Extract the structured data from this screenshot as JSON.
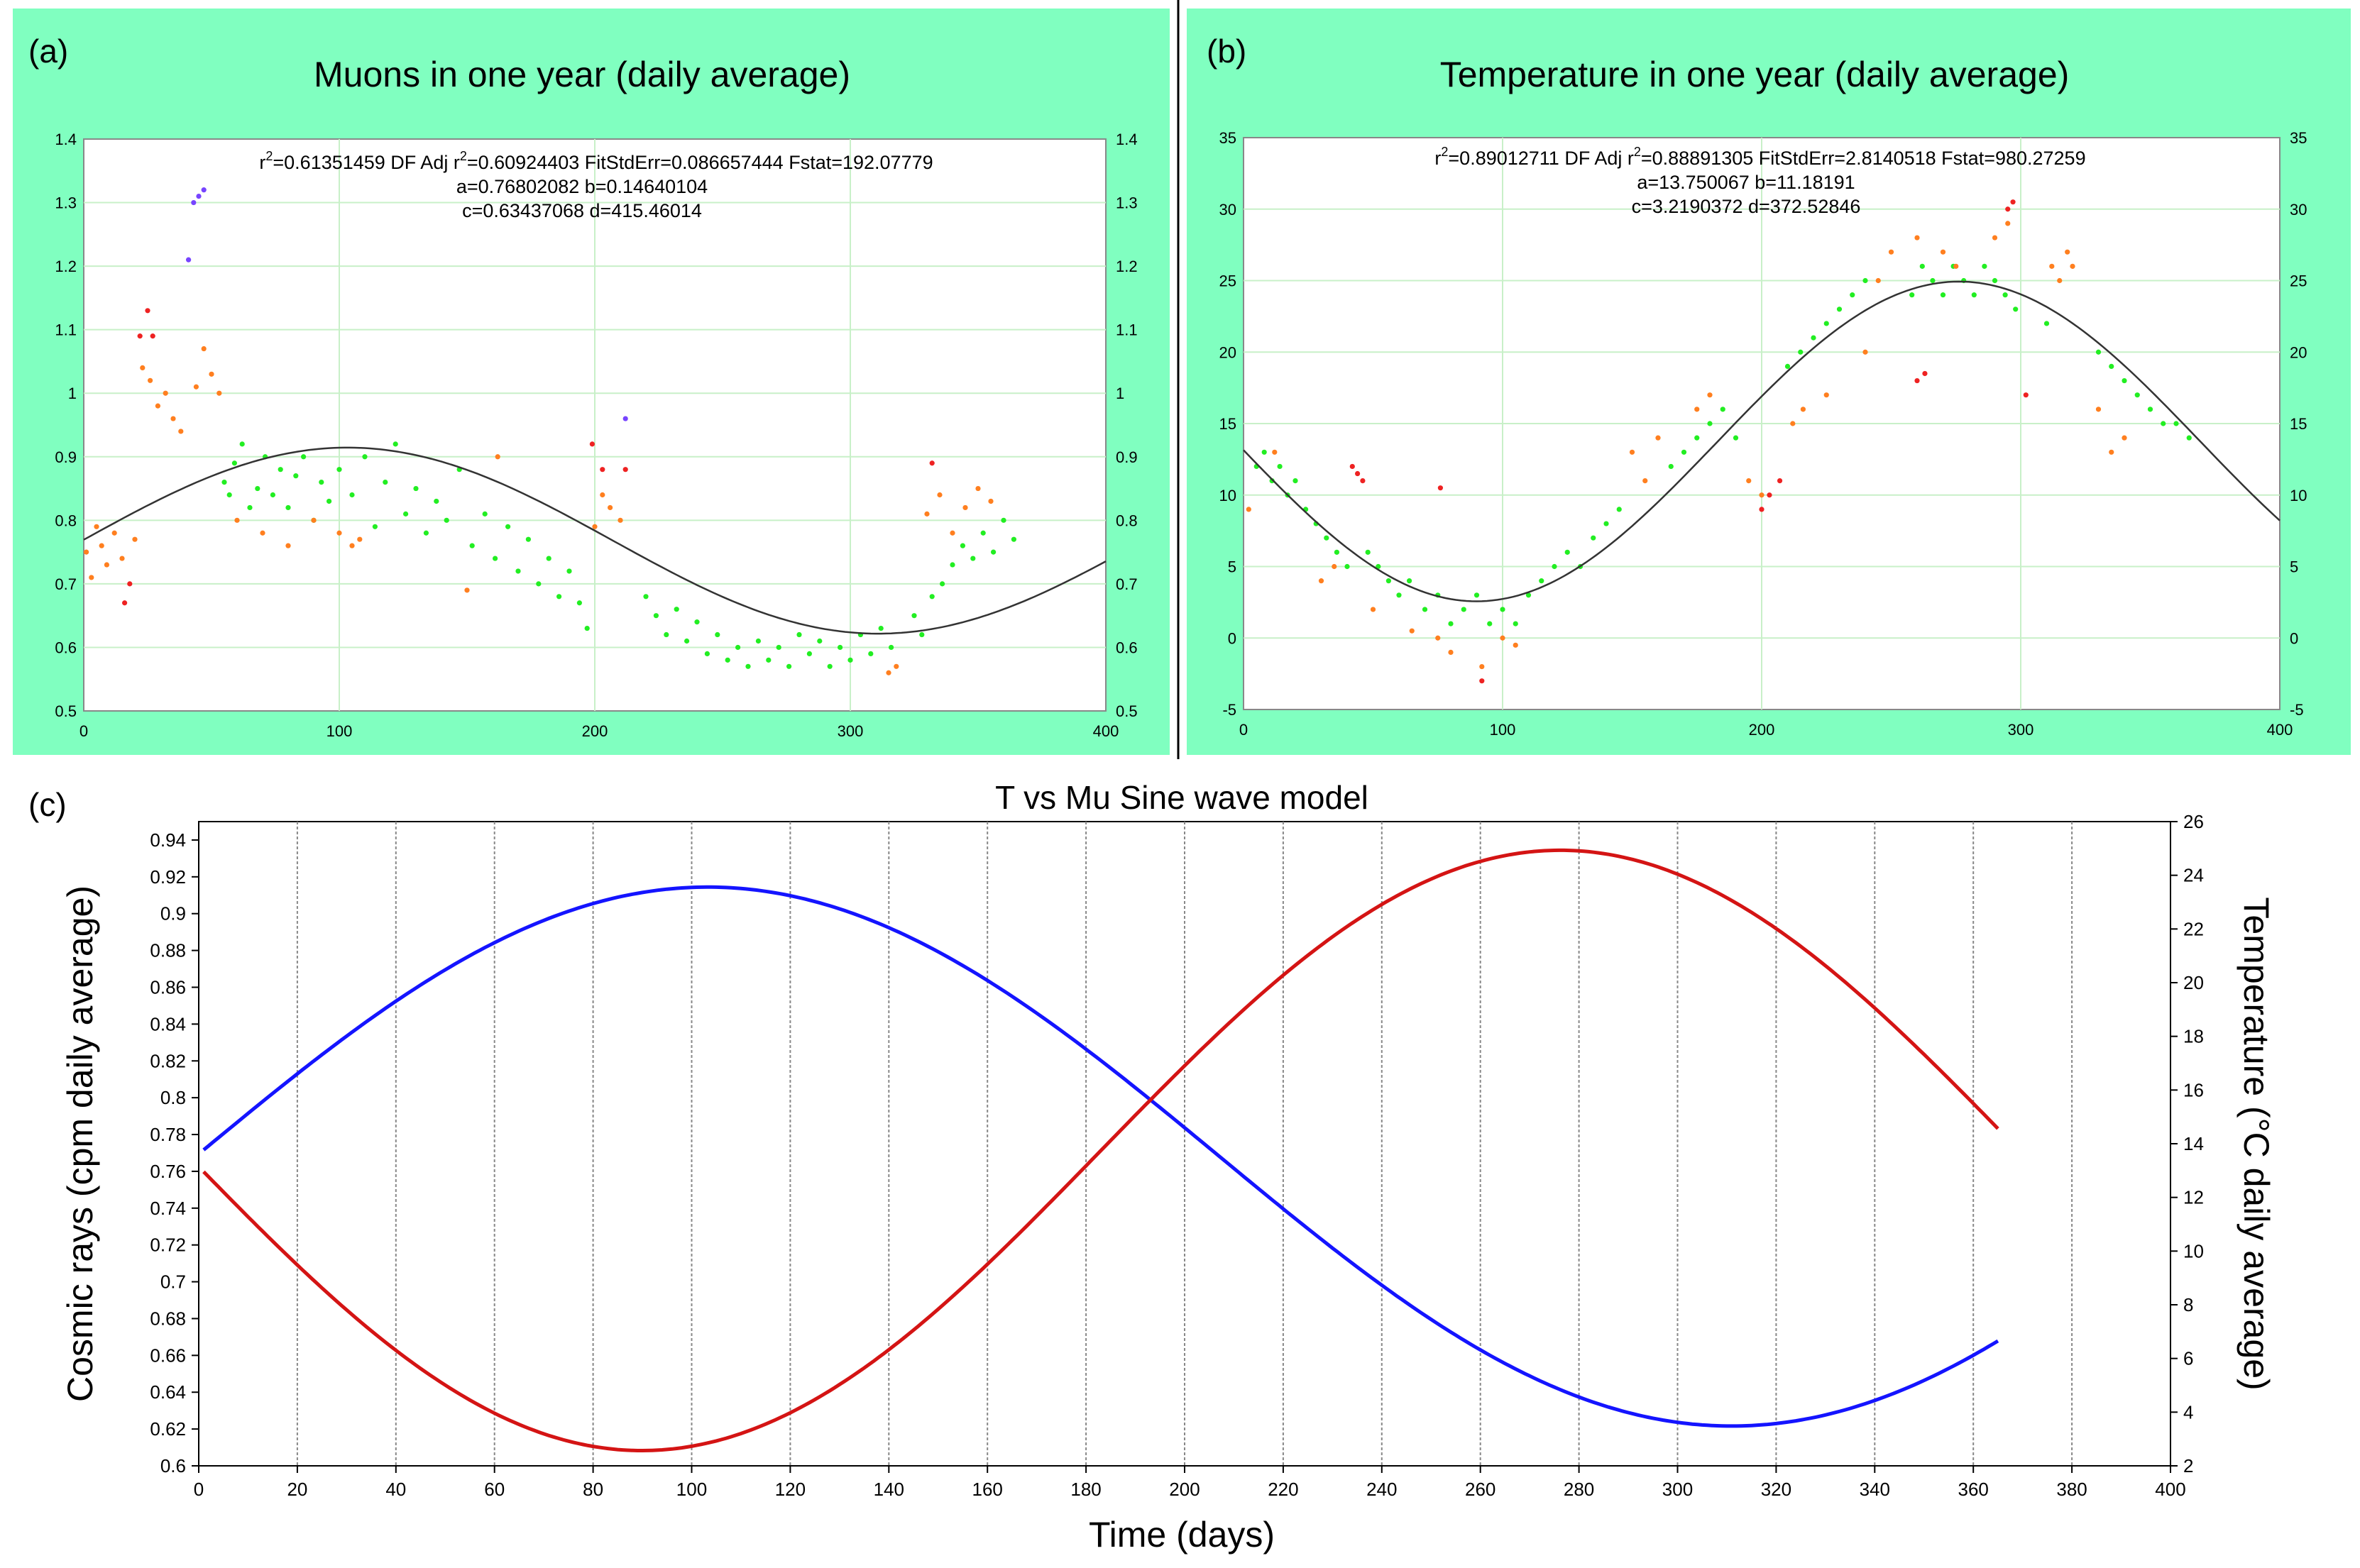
{
  "colors": {
    "panel_bg": "#80ffc0",
    "grid": "#c8f0c8",
    "green_pts": "#22ee22",
    "orange_pts": "#ff7f1f",
    "red_pts": "#ee2222",
    "purple_pts": "#7744ff",
    "fit_line": "#333333",
    "blue_line": "#1414ff",
    "red_line": "#d41414"
  },
  "chart_data": [
    {
      "type": "scatter",
      "panel_label": "(a)",
      "title": "Muons in one year (daily average)",
      "stats_line1_prefix": "r",
      "stats_line1_sup": "2",
      "stats_line1_mid": "=0.61351459  DF Adj r",
      "stats_line1_sup2": "2",
      "stats_line1_rest": "=0.60924403  FitStdErr=0.086657444  Fstat=192.07779",
      "stats_line2": "a=0.76802082 b=0.14640104",
      "stats_line3": "c=0.63437068 d=415.46014",
      "xlim": [
        0,
        400
      ],
      "ylim": [
        0.5,
        1.4
      ],
      "xticks": [
        "0",
        "100",
        "200",
        "300",
        "400"
      ],
      "yticks": [
        "0.5",
        "0.6",
        "0.7",
        "0.8",
        "0.9",
        "1",
        "1.1",
        "1.2",
        "1.3",
        "1.4"
      ],
      "fit": {
        "model": "a + b*sin(2*pi*(x + c)/d)",
        "a": 0.76802082,
        "b": 0.14640104,
        "c": 0.63437068,
        "d": 415.46014
      },
      "series": [
        {
          "name": "green",
          "x": [
            55,
            57,
            59,
            62,
            65,
            68,
            71,
            74,
            77,
            80,
            83,
            86,
            90,
            93,
            96,
            100,
            105,
            110,
            114,
            118,
            122,
            126,
            130,
            134,
            138,
            142,
            147,
            152,
            157,
            161,
            166,
            170,
            174,
            178,
            182,
            186,
            190,
            194,
            197,
            220,
            224,
            228,
            232,
            236,
            240,
            244,
            248,
            252,
            256,
            260,
            264,
            268,
            272,
            276,
            280,
            284,
            288,
            292,
            296,
            300,
            304,
            308,
            312,
            316,
            325,
            328,
            332,
            336,
            340,
            344,
            348,
            352,
            356,
            360,
            364
          ],
          "y": [
            0.86,
            0.84,
            0.89,
            0.92,
            0.82,
            0.85,
            0.9,
            0.84,
            0.88,
            0.82,
            0.87,
            0.9,
            0.8,
            0.86,
            0.83,
            0.88,
            0.84,
            0.9,
            0.79,
            0.86,
            0.92,
            0.81,
            0.85,
            0.78,
            0.83,
            0.8,
            0.88,
            0.76,
            0.81,
            0.74,
            0.79,
            0.72,
            0.77,
            0.7,
            0.74,
            0.68,
            0.72,
            0.67,
            0.63,
            0.68,
            0.65,
            0.62,
            0.66,
            0.61,
            0.64,
            0.59,
            0.62,
            0.58,
            0.6,
            0.57,
            0.61,
            0.58,
            0.6,
            0.57,
            0.62,
            0.59,
            0.61,
            0.57,
            0.6,
            0.58,
            0.62,
            0.59,
            0.63,
            0.6,
            0.65,
            0.62,
            0.68,
            0.7,
            0.73,
            0.76,
            0.74,
            0.78,
            0.75,
            0.8,
            0.77
          ]
        },
        {
          "name": "orange",
          "x": [
            1,
            3,
            5,
            7,
            9,
            12,
            15,
            20,
            23,
            26,
            29,
            32,
            35,
            38,
            44,
            47,
            50,
            53,
            60,
            70,
            80,
            90,
            100,
            105,
            108,
            150,
            162,
            200,
            203,
            206,
            210,
            315,
            318,
            330,
            335,
            340,
            345,
            350,
            355
          ],
          "y": [
            0.75,
            0.71,
            0.79,
            0.76,
            0.73,
            0.78,
            0.74,
            0.77,
            1.04,
            1.02,
            0.98,
            1.0,
            0.96,
            0.94,
            1.01,
            1.07,
            1.03,
            1.0,
            0.8,
            0.78,
            0.76,
            0.8,
            0.78,
            0.76,
            0.77,
            0.69,
            0.9,
            0.79,
            0.84,
            0.82,
            0.8,
            0.56,
            0.57,
            0.81,
            0.84,
            0.78,
            0.82,
            0.85,
            0.83
          ]
        },
        {
          "name": "red",
          "x": [
            16,
            18,
            22,
            25,
            27,
            199,
            203,
            212,
            332
          ],
          "y": [
            0.67,
            0.7,
            1.09,
            1.13,
            1.09,
            0.92,
            0.88,
            0.88,
            0.89
          ]
        },
        {
          "name": "purple",
          "x": [
            41,
            43,
            45,
            47,
            212
          ],
          "y": [
            1.21,
            1.3,
            1.31,
            1.32,
            0.96
          ]
        }
      ]
    },
    {
      "type": "scatter",
      "panel_label": "(b)",
      "title": "Temperature in one year (daily average)",
      "stats_line1_prefix": "r",
      "stats_line1_sup": "2",
      "stats_line1_mid": "=0.89012711  DF Adj r",
      "stats_line1_sup2": "2",
      "stats_line1_rest": "=0.88891305  FitStdErr=2.8140518  Fstat=980.27259",
      "stats_line2": "a=13.750067 b=11.18191",
      "stats_line3": "c=3.2190372 d=372.52846",
      "xlim": [
        0,
        400
      ],
      "ylim": [
        -5,
        35
      ],
      "xticks": [
        "0",
        "100",
        "200",
        "300",
        "400"
      ],
      "yticks": [
        "-5",
        "0",
        "5",
        "10",
        "15",
        "20",
        "25",
        "30",
        "35"
      ],
      "fit": {
        "model": "a + b*sin(2*pi*(x + c)/d + pi)",
        "a": 13.750067,
        "b": 11.18191,
        "c": 3.2190372,
        "d": 372.52846
      },
      "series": [
        {
          "name": "green",
          "x": [
            5,
            8,
            11,
            14,
            17,
            20,
            24,
            28,
            32,
            36,
            40,
            48,
            52,
            56,
            60,
            64,
            70,
            75,
            80,
            85,
            90,
            95,
            100,
            105,
            110,
            115,
            120,
            125,
            130,
            135,
            140,
            145,
            165,
            170,
            175,
            180,
            185,
            190,
            210,
            215,
            220,
            225,
            230,
            235,
            240,
            258,
            262,
            266,
            270,
            274,
            278,
            282,
            286,
            290,
            294,
            298,
            310,
            330,
            335,
            340,
            345,
            350,
            355,
            360,
            365
          ],
          "y": [
            12,
            13,
            11,
            12,
            10,
            11,
            9,
            8,
            7,
            6,
            5,
            6,
            5,
            4,
            3,
            4,
            2,
            3,
            1,
            2,
            3,
            1,
            2,
            1,
            3,
            4,
            5,
            6,
            5,
            7,
            8,
            9,
            12,
            13,
            14,
            15,
            16,
            14,
            19,
            20,
            21,
            22,
            23,
            24,
            25,
            24,
            26,
            25,
            24,
            26,
            25,
            24,
            26,
            25,
            24,
            23,
            22,
            20,
            19,
            18,
            17,
            16,
            15,
            15,
            14
          ]
        },
        {
          "name": "orange",
          "x": [
            2,
            12,
            30,
            35,
            50,
            65,
            75,
            80,
            92,
            100,
            105,
            150,
            155,
            160,
            175,
            180,
            195,
            200,
            212,
            216,
            225,
            240,
            245,
            250,
            260,
            270,
            275,
            290,
            295,
            312,
            315,
            318,
            320,
            330,
            335,
            340
          ],
          "y": [
            9,
            13,
            4,
            5,
            2,
            0.5,
            0,
            -1,
            -2,
            0,
            -0.5,
            13,
            11,
            14,
            16,
            17,
            11,
            10,
            15,
            16,
            17,
            20,
            25,
            27,
            28,
            27,
            26,
            28,
            29,
            26,
            25,
            27,
            26,
            16,
            13,
            14
          ]
        },
        {
          "name": "red",
          "x": [
            42,
            44,
            46,
            76,
            92,
            200,
            203,
            207,
            260,
            263,
            295,
            297,
            302
          ],
          "y": [
            12,
            11.5,
            11,
            10.5,
            -3,
            9,
            10,
            11,
            18,
            18.5,
            30,
            30.5,
            17
          ]
        }
      ]
    },
    {
      "type": "line",
      "panel_label": "(c)",
      "title": "T vs Mu Sine wave model",
      "xlabel": "Time (days)",
      "ylabel_left": "Cosmic rays (cpm daily average)",
      "ylabel_right": "Temperature (°C daily average)",
      "xlim": [
        0,
        400
      ],
      "ylim_left": [
        0.6,
        0.95
      ],
      "ylim_right": [
        2,
        26
      ],
      "xticks": [
        "0",
        "20",
        "40",
        "60",
        "80",
        "100",
        "120",
        "140",
        "160",
        "180",
        "200",
        "220",
        "240",
        "260",
        "280",
        "300",
        "320",
        "340",
        "360",
        "380",
        "400"
      ],
      "yticks_left": [
        "0.6",
        "0.62",
        "0.64",
        "0.66",
        "0.68",
        "0.7",
        "0.72",
        "0.74",
        "0.76",
        "0.78",
        "0.8",
        "0.82",
        "0.84",
        "0.86",
        "0.88",
        "0.9",
        "0.92",
        "0.94"
      ],
      "yticks_right": [
        "2",
        "4",
        "6",
        "8",
        "10",
        "12",
        "14",
        "16",
        "18",
        "20",
        "22",
        "24",
        "26"
      ],
      "x_range": [
        1,
        365
      ],
      "series": [
        {
          "name": "Cosmic rays",
          "axis": "left",
          "a": 0.76802082,
          "b": 0.14640104,
          "c": 0.63437068,
          "d": 415.46014,
          "phase": 0
        },
        {
          "name": "Temperature",
          "axis": "right",
          "a": 13.750067,
          "b": 11.18191,
          "c": 3.2190372,
          "d": 372.52846,
          "phase": 3.14159265
        }
      ]
    }
  ]
}
